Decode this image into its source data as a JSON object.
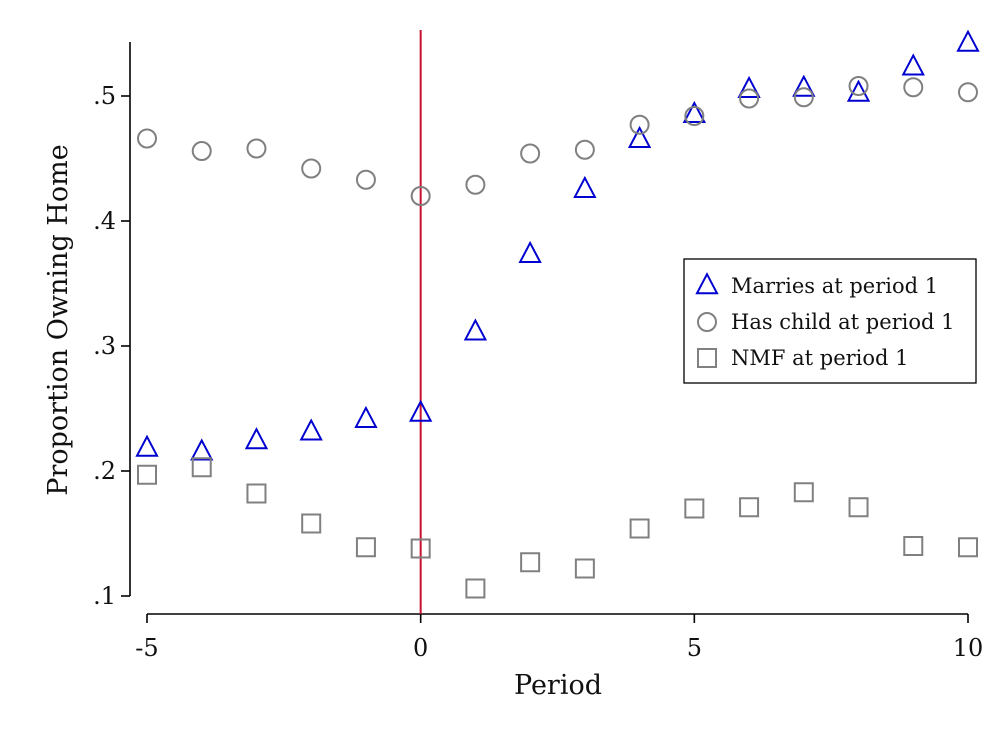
{
  "chart_data": {
    "type": "scatter",
    "title": "",
    "xlabel": "Period",
    "ylabel": "Proportion Owning Home",
    "xlim": [
      -5,
      10
    ],
    "ylim": [
      0.1,
      0.54
    ],
    "x_ticks": [
      -5,
      0,
      5,
      10
    ],
    "x_tick_labels": [
      "-5",
      "0",
      "5",
      "10"
    ],
    "y_ticks": [
      0.1,
      0.2,
      0.3,
      0.4,
      0.5
    ],
    "y_tick_labels": [
      ".1",
      ".2",
      ".3",
      ".4",
      ".5"
    ],
    "grid": false,
    "legend_position": "right",
    "reference_line": {
      "axis": "x",
      "value": 0,
      "color": "#c8102e"
    },
    "x": [
      -5,
      -4,
      -3,
      -2,
      -1,
      0,
      1,
      2,
      3,
      4,
      5,
      6,
      7,
      8,
      9,
      10
    ],
    "series": [
      {
        "name": "Marries at period 1",
        "marker": "triangle",
        "color": "#0000d0",
        "values": [
          0.218,
          0.215,
          0.224,
          0.231,
          0.241,
          0.246,
          0.311,
          0.373,
          0.425,
          0.465,
          0.485,
          0.505,
          0.506,
          0.502,
          0.523,
          0.542
        ]
      },
      {
        "name": "Has child at period 1",
        "marker": "circle",
        "color": "#808080",
        "values": [
          0.466,
          0.456,
          0.458,
          0.442,
          0.433,
          0.42,
          0.429,
          0.454,
          0.457,
          0.477,
          0.484,
          0.498,
          0.499,
          0.508,
          0.507,
          0.503
        ]
      },
      {
        "name": "NMF at period 1",
        "marker": "square",
        "color": "#808080",
        "values": [
          0.197,
          0.203,
          0.182,
          0.158,
          0.139,
          0.138,
          0.106,
          0.127,
          0.122,
          0.154,
          0.17,
          0.171,
          0.183,
          0.171,
          0.14,
          0.139
        ]
      }
    ]
  }
}
